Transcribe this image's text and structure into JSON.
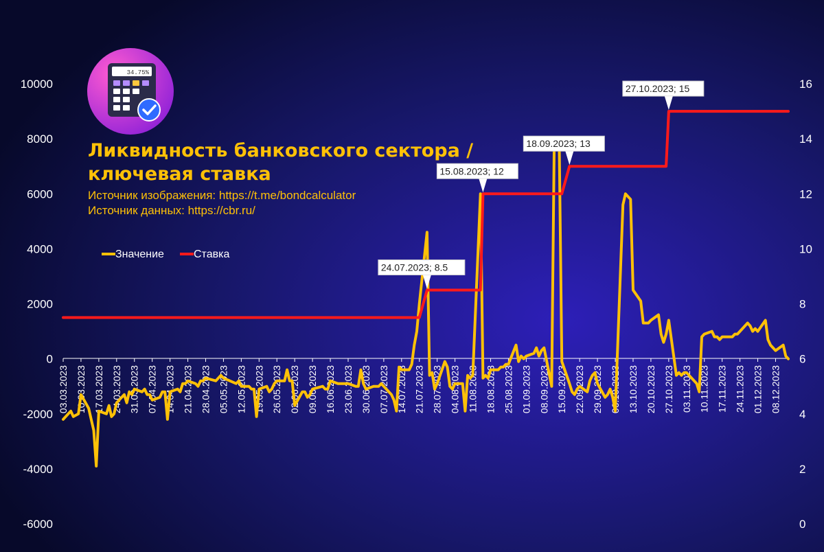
{
  "header": {
    "title_line1": "Ликвидность банковского сектора /",
    "title_line2": "ключевая ставка",
    "source_image": "Источник изображения: https://t.me/bondcalculator",
    "source_data": "Источник данных: https://cbr.ru/"
  },
  "logo": {
    "display": "34.75%",
    "icon": "calculator-check-icon"
  },
  "colors": {
    "background": "#0b0d2e",
    "liquidity": "#ffc107",
    "rate": "#ff1a1a",
    "title": "#ffc107"
  },
  "legend": {
    "position": "upper-left",
    "items": [
      {
        "label": "Значение",
        "color": "#ffc107"
      },
      {
        "label": "Ставка",
        "color": "#ff1a1a"
      }
    ]
  },
  "chart_data": {
    "type": "line",
    "left_axis": {
      "ylim": [
        -6000,
        10000
      ],
      "ticks": [
        "-6000",
        "-4000",
        "-2000",
        "0",
        "2000",
        "4000",
        "6000",
        "8000",
        "10000"
      ]
    },
    "right_axis": {
      "ylim": [
        0,
        16
      ],
      "ticks": [
        "0",
        "2",
        "4",
        "6",
        "8",
        "10",
        "12",
        "14",
        "16"
      ]
    },
    "x_ticks": [
      "03.03.2023",
      "10.03.2023",
      "17.03.2023",
      "24.03.2023",
      "31.03.2023",
      "07.04.2023",
      "14.04.2023",
      "21.04.2023",
      "28.04.2023",
      "05.05.2023",
      "12.05.2023",
      "19.05.2023",
      "26.05.2023",
      "02.06.2023",
      "09.06.2023",
      "16.06.2023",
      "23.06.2023",
      "30.06.2023",
      "07.07.2023",
      "14.07.2023",
      "21.07.2023",
      "28.07.2023",
      "04.08.2023",
      "11.08.2023",
      "18.08.2023",
      "25.08.2023",
      "01.09.2023",
      "08.09.2023",
      "15.09.2023",
      "22.09.2023",
      "29.09.2023",
      "06.10.2023",
      "13.10.2023",
      "20.10.2023",
      "27.10.2023",
      "03.11.2023",
      "10.11.2023",
      "17.11.2023",
      "24.11.2023",
      "01.12.2023",
      "08.12.2023"
    ],
    "x_range": [
      "2023-03-03",
      "2023-12-13"
    ],
    "grid": false,
    "series": [
      {
        "name": "Значение",
        "axis": "left",
        "points": [
          [
            "2023-03-03",
            -2200
          ],
          [
            "2023-03-06",
            -1900
          ],
          [
            "2023-03-07",
            -2100
          ],
          [
            "2023-03-09",
            -2000
          ],
          [
            "2023-03-10",
            -1300
          ],
          [
            "2023-03-13",
            -1800
          ],
          [
            "2023-03-14",
            -2200
          ],
          [
            "2023-03-15",
            -2600
          ],
          [
            "2023-03-16",
            -3900
          ],
          [
            "2023-03-17",
            -1900
          ],
          [
            "2023-03-20",
            -2000
          ],
          [
            "2023-03-21",
            -1700
          ],
          [
            "2023-03-22",
            -2100
          ],
          [
            "2023-03-23",
            -2000
          ],
          [
            "2023-03-24",
            -1600
          ],
          [
            "2023-03-27",
            -1300
          ],
          [
            "2023-03-28",
            -1600
          ],
          [
            "2023-03-29",
            -1200
          ],
          [
            "2023-03-30",
            -1300
          ],
          [
            "2023-03-31",
            -1100
          ],
          [
            "2023-04-03",
            -1200
          ],
          [
            "2023-04-04",
            -1100
          ],
          [
            "2023-04-05",
            -1300
          ],
          [
            "2023-04-06",
            -1300
          ],
          [
            "2023-04-07",
            -1500
          ],
          [
            "2023-04-10",
            -1400
          ],
          [
            "2023-04-11",
            -1200
          ],
          [
            "2023-04-12",
            -1200
          ],
          [
            "2023-04-13",
            -2200
          ],
          [
            "2023-04-14",
            -1200
          ],
          [
            "2023-04-17",
            -1100
          ],
          [
            "2023-04-18",
            -1200
          ],
          [
            "2023-04-19",
            -900
          ],
          [
            "2023-04-20",
            -900
          ],
          [
            "2023-04-21",
            -800
          ],
          [
            "2023-04-24",
            -900
          ],
          [
            "2023-04-25",
            -1000
          ],
          [
            "2023-04-26",
            -800
          ],
          [
            "2023-04-27",
            -800
          ],
          [
            "2023-04-28",
            -700
          ],
          [
            "2023-05-02",
            -800
          ],
          [
            "2023-05-03",
            -700
          ],
          [
            "2023-05-04",
            -600
          ],
          [
            "2023-05-05",
            -700
          ],
          [
            "2023-05-10",
            -900
          ],
          [
            "2023-05-11",
            -800
          ],
          [
            "2023-05-12",
            -1000
          ],
          [
            "2023-05-15",
            -1000
          ],
          [
            "2023-05-16",
            -1100
          ],
          [
            "2023-05-17",
            -1100
          ],
          [
            "2023-05-18",
            -2100
          ],
          [
            "2023-05-19",
            -1100
          ],
          [
            "2023-05-22",
            -1000
          ],
          [
            "2023-05-23",
            -1200
          ],
          [
            "2023-05-24",
            -1100
          ],
          [
            "2023-05-25",
            -900
          ],
          [
            "2023-05-26",
            -800
          ],
          [
            "2023-05-29",
            -800
          ],
          [
            "2023-05-30",
            -400
          ],
          [
            "2023-05-31",
            -800
          ],
          [
            "2023-06-01",
            -800
          ],
          [
            "2023-06-02",
            -1700
          ],
          [
            "2023-06-05",
            -1200
          ],
          [
            "2023-06-06",
            -1200
          ],
          [
            "2023-06-07",
            -1400
          ],
          [
            "2023-06-08",
            -1300
          ],
          [
            "2023-06-09",
            -1100
          ],
          [
            "2023-06-13",
            -1000
          ],
          [
            "2023-06-14",
            -1100
          ],
          [
            "2023-06-15",
            -1100
          ],
          [
            "2023-06-16",
            -800
          ],
          [
            "2023-06-19",
            -900
          ],
          [
            "2023-06-20",
            -900
          ],
          [
            "2023-06-21",
            -900
          ],
          [
            "2023-06-22",
            -900
          ],
          [
            "2023-06-23",
            -900
          ],
          [
            "2023-06-26",
            -1000
          ],
          [
            "2023-06-27",
            -1000
          ],
          [
            "2023-06-28",
            -400
          ],
          [
            "2023-06-29",
            -900
          ],
          [
            "2023-06-30",
            -1100
          ],
          [
            "2023-07-03",
            -1000
          ],
          [
            "2023-07-04",
            -1000
          ],
          [
            "2023-07-05",
            -1000
          ],
          [
            "2023-07-06",
            -900
          ],
          [
            "2023-07-07",
            -1000
          ],
          [
            "2023-07-10",
            -1300
          ],
          [
            "2023-07-11",
            -1500
          ],
          [
            "2023-07-12",
            -1900
          ],
          [
            "2023-07-13",
            -300
          ],
          [
            "2023-07-14",
            -400
          ],
          [
            "2023-07-17",
            -400
          ],
          [
            "2023-07-18",
            -200
          ],
          [
            "2023-07-19",
            500
          ],
          [
            "2023-07-20",
            1000
          ],
          [
            "2023-07-21",
            2000
          ],
          [
            "2023-07-24",
            4600
          ],
          [
            "2023-07-25",
            -600
          ],
          [
            "2023-07-26",
            -500
          ],
          [
            "2023-07-27",
            -1100
          ],
          [
            "2023-07-28",
            -900
          ],
          [
            "2023-07-31",
            -100
          ],
          [
            "2023-08-01",
            -300
          ],
          [
            "2023-08-02",
            -1000
          ],
          [
            "2023-08-03",
            -1100
          ],
          [
            "2023-08-04",
            -900
          ],
          [
            "2023-08-07",
            -900
          ],
          [
            "2023-08-08",
            -1900
          ],
          [
            "2023-08-09",
            -600
          ],
          [
            "2023-08-10",
            -700
          ],
          [
            "2023-08-11",
            -600
          ],
          [
            "2023-08-14",
            6000
          ],
          [
            "2023-08-15",
            -700
          ],
          [
            "2023-08-16",
            -600
          ],
          [
            "2023-08-17",
            -700
          ],
          [
            "2023-08-18",
            -400
          ],
          [
            "2023-08-21",
            -400
          ],
          [
            "2023-08-22",
            -300
          ],
          [
            "2023-08-23",
            -300
          ],
          [
            "2023-08-24",
            -200
          ],
          [
            "2023-08-25",
            -200
          ],
          [
            "2023-08-28",
            500
          ],
          [
            "2023-08-29",
            -100
          ],
          [
            "2023-08-30",
            100
          ],
          [
            "2023-08-31",
            0
          ],
          [
            "2023-09-01",
            100
          ],
          [
            "2023-09-04",
            200
          ],
          [
            "2023-09-05",
            400
          ],
          [
            "2023-09-06",
            100
          ],
          [
            "2023-09-07",
            300
          ],
          [
            "2023-09-08",
            400
          ],
          [
            "2023-09-11",
            -1000
          ],
          [
            "2023-09-12",
            7800
          ],
          [
            "2023-09-13",
            7600
          ],
          [
            "2023-09-14",
            7700
          ],
          [
            "2023-09-15",
            -100
          ],
          [
            "2023-09-18",
            -900
          ],
          [
            "2023-09-19",
            -1200
          ],
          [
            "2023-09-20",
            -1300
          ],
          [
            "2023-09-21",
            -1100
          ],
          [
            "2023-09-22",
            -1000
          ],
          [
            "2023-09-25",
            -1200
          ],
          [
            "2023-09-26",
            -800
          ],
          [
            "2023-09-27",
            -600
          ],
          [
            "2023-09-28",
            -500
          ],
          [
            "2023-09-29",
            -900
          ],
          [
            "2023-10-02",
            -1400
          ],
          [
            "2023-10-03",
            -1300
          ],
          [
            "2023-10-04",
            -1100
          ],
          [
            "2023-10-05",
            -1400
          ],
          [
            "2023-10-06",
            -1900
          ],
          [
            "2023-10-09",
            5600
          ],
          [
            "2023-10-10",
            6000
          ],
          [
            "2023-10-11",
            5900
          ],
          [
            "2023-10-12",
            5800
          ],
          [
            "2023-10-13",
            2500
          ],
          [
            "2023-10-16",
            2100
          ],
          [
            "2023-10-17",
            1300
          ],
          [
            "2023-10-18",
            1300
          ],
          [
            "2023-10-19",
            1300
          ],
          [
            "2023-10-20",
            1400
          ],
          [
            "2023-10-23",
            1600
          ],
          [
            "2023-10-24",
            900
          ],
          [
            "2023-10-25",
            600
          ],
          [
            "2023-10-26",
            900
          ],
          [
            "2023-10-27",
            1400
          ],
          [
            "2023-10-30",
            -600
          ],
          [
            "2023-10-31",
            -500
          ],
          [
            "2023-11-01",
            -600
          ],
          [
            "2023-11-02",
            -500
          ],
          [
            "2023-11-03",
            -500
          ],
          [
            "2023-11-07",
            -900
          ],
          [
            "2023-11-08",
            -1200
          ],
          [
            "2023-11-09",
            800
          ],
          [
            "2023-11-10",
            900
          ],
          [
            "2023-11-13",
            1000
          ],
          [
            "2023-11-14",
            800
          ],
          [
            "2023-11-15",
            800
          ],
          [
            "2023-11-16",
            700
          ],
          [
            "2023-11-17",
            800
          ],
          [
            "2023-11-20",
            800
          ],
          [
            "2023-11-21",
            800
          ],
          [
            "2023-11-22",
            900
          ],
          [
            "2023-11-23",
            900
          ],
          [
            "2023-11-24",
            1000
          ],
          [
            "2023-11-27",
            1300
          ],
          [
            "2023-11-28",
            1200
          ],
          [
            "2023-11-29",
            1000
          ],
          [
            "2023-11-30",
            1100
          ],
          [
            "2023-12-01",
            1000
          ],
          [
            "2023-12-04",
            1400
          ],
          [
            "2023-12-05",
            700
          ],
          [
            "2023-12-06",
            500
          ],
          [
            "2023-12-07",
            400
          ],
          [
            "2023-12-08",
            300
          ],
          [
            "2023-12-11",
            500
          ],
          [
            "2023-12-12",
            100
          ],
          [
            "2023-12-13",
            0
          ]
        ]
      },
      {
        "name": "Ставка",
        "axis": "right",
        "points": [
          [
            "2023-03-03",
            7.5
          ],
          [
            "2023-07-21",
            7.5
          ],
          [
            "2023-07-24",
            8.5
          ],
          [
            "2023-08-14",
            8.5
          ],
          [
            "2023-08-15",
            12
          ],
          [
            "2023-09-15",
            12
          ],
          [
            "2023-09-18",
            13
          ],
          [
            "2023-10-26",
            13
          ],
          [
            "2023-10-27",
            15
          ],
          [
            "2023-12-13",
            15
          ]
        ]
      }
    ],
    "annotations": [
      {
        "date": "2023-07-24",
        "value": 8.5,
        "label": "24.07.2023; 8.5"
      },
      {
        "date": "2023-08-15",
        "value": 12,
        "label": "15.08.2023; 12"
      },
      {
        "date": "2023-09-18",
        "value": 13,
        "label": "18.09.2023; 13"
      },
      {
        "date": "2023-10-27",
        "value": 15,
        "label": "27.10.2023; 15"
      }
    ]
  }
}
